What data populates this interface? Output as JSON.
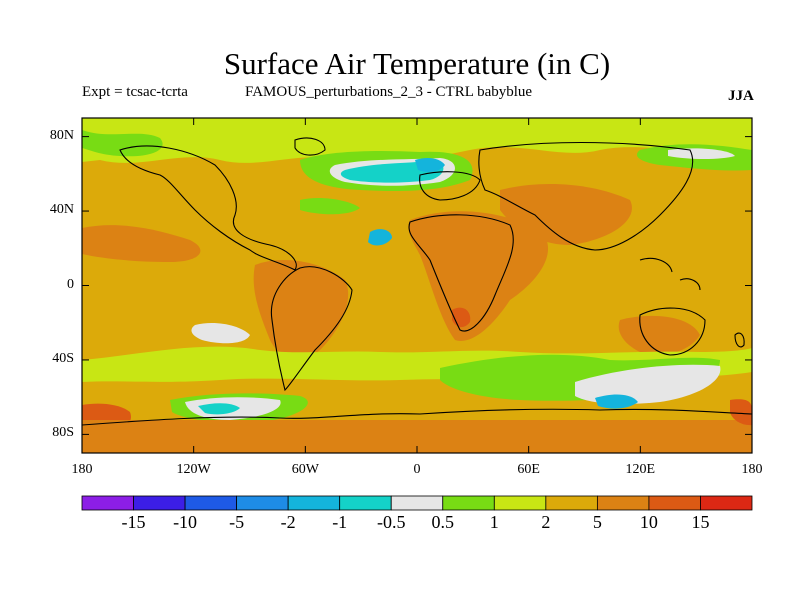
{
  "header": {
    "title": "Surface Air Temperature (in C)",
    "left_label": "Expt = tcsac-tcrta",
    "center_label": "FAMOUS_perturbations_2_3 - CTRL babyblue",
    "season": "JJA"
  },
  "axes": {
    "lat_ticks": [
      "80N",
      "40N",
      "0",
      "40S",
      "80S"
    ],
    "lat_values": [
      80,
      40,
      0,
      -40,
      -80
    ],
    "lon_ticks": [
      "180",
      "120W",
      "60W",
      "0",
      "60E",
      "120E",
      "180"
    ],
    "lon_values": [
      -180,
      -120,
      -60,
      0,
      60,
      120,
      180
    ],
    "lat_range": [
      -90,
      90
    ],
    "lon_range": [
      -180,
      180
    ]
  },
  "colorbar": {
    "labels": [
      "-15",
      "-10",
      "-5",
      "-2",
      "-1",
      "-0.5",
      "0.5",
      "1",
      "2",
      "5",
      "10",
      "15"
    ],
    "colors": [
      "#8c1ee6",
      "#3c1ee6",
      "#1e5ae6",
      "#1e8ce6",
      "#14b4dc",
      "#14d2c8",
      "#e6e6e6",
      "#78dc14",
      "#c8e614",
      "#dcaa0a",
      "#dc8214",
      "#dc5a14",
      "#dc2814"
    ]
  },
  "colors": {
    "background_field": "#dcaa0a",
    "coastline": "#000000"
  }
}
